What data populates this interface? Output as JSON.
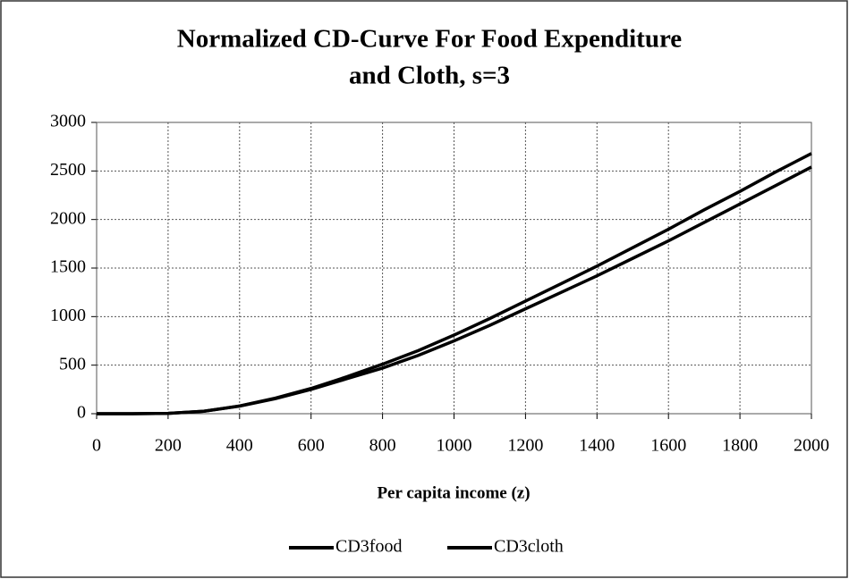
{
  "chart_data": {
    "type": "line",
    "title": [
      "Normalized CD-Curve For Food Expenditure",
      "and Cloth, s=3"
    ],
    "xlabel": "Per capita income (z)",
    "x": [
      0,
      100,
      200,
      300,
      400,
      500,
      600,
      700,
      800,
      900,
      1000,
      1100,
      1200,
      1300,
      1400,
      1500,
      1600,
      1700,
      1800,
      1900,
      2000
    ],
    "series": [
      {
        "name": "CD3food",
        "color": "#000000",
        "values": [
          0,
          0,
          3,
          25,
          80,
          160,
          260,
          380,
          510,
          650,
          810,
          980,
          1160,
          1340,
          1520,
          1710,
          1900,
          2100,
          2290,
          2490,
          2680
        ]
      },
      {
        "name": "CD3cloth",
        "color": "#000000",
        "values": [
          0,
          0,
          3,
          25,
          78,
          155,
          250,
          360,
          470,
          600,
          750,
          910,
          1080,
          1250,
          1420,
          1600,
          1780,
          1970,
          2160,
          2350,
          2540
        ]
      }
    ],
    "xlim": [
      0,
      2000
    ],
    "xticks": [
      0,
      200,
      400,
      600,
      800,
      1000,
      1200,
      1400,
      1600,
      1800,
      2000
    ],
    "ylim": [
      0,
      3000
    ],
    "yticks": [
      0,
      500,
      1000,
      1500,
      2000,
      2500,
      3000
    ],
    "grid": true,
    "legend": "bottom"
  }
}
